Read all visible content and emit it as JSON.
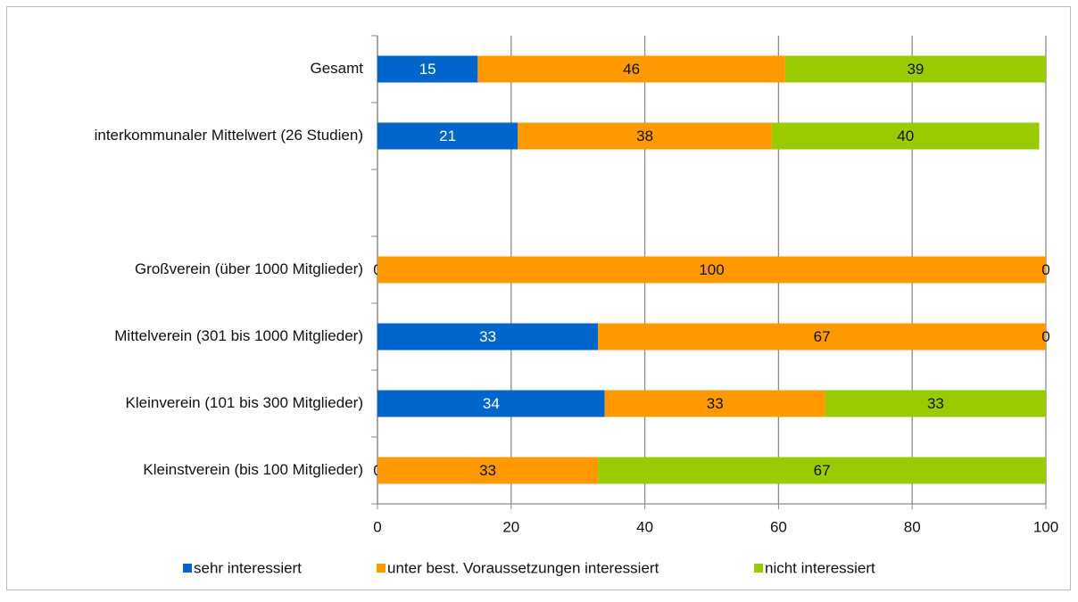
{
  "chart_data": {
    "type": "stacked-barh",
    "categories": [
      "Gesamt",
      "interkommunaler Mittelwert (26 Studien)",
      null,
      "Großverein (über 1000 Mitglieder)",
      "Mittelverein (301 bis 1000 Mitglieder)",
      "Kleinverein (101 bis 300 Mitglieder)",
      "Kleinstverein (bis 100 Mitglieder)"
    ],
    "series": [
      {
        "name": "sehr interessiert",
        "color": "#0066cc",
        "values": [
          15,
          21,
          null,
          0,
          33,
          34,
          0
        ]
      },
      {
        "name": "unter best. Voraussetzungen interessiert",
        "color": "#ff9900",
        "values": [
          46,
          38,
          null,
          100,
          67,
          33,
          33
        ]
      },
      {
        "name": "nicht interessiert",
        "color": "#99cc00",
        "values": [
          39,
          40,
          null,
          0,
          0,
          33,
          67
        ]
      }
    ],
    "xlim": [
      0,
      100
    ],
    "xticks": [
      0,
      20,
      40,
      60,
      80,
      100
    ],
    "grid": true,
    "legend": "bottom"
  }
}
